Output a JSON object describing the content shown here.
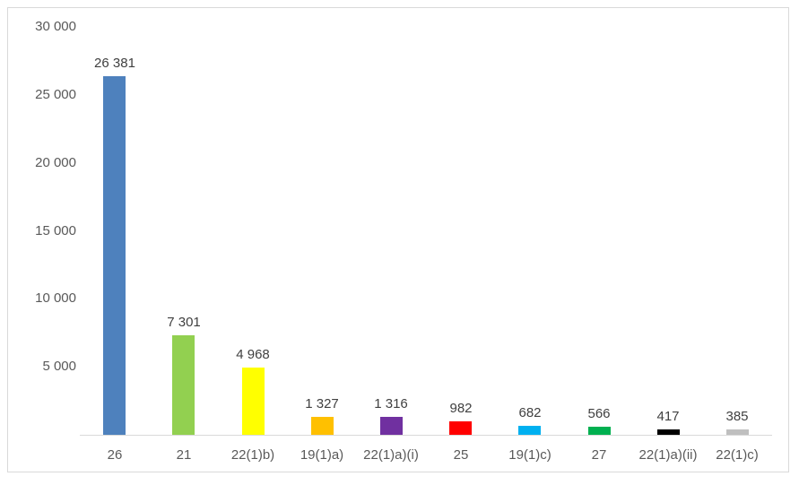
{
  "chart_data": {
    "type": "bar",
    "title": "",
    "xlabel": "",
    "ylabel": "",
    "legend_position": "none",
    "grid": false,
    "ylim": [
      0,
      30000
    ],
    "categories": [
      "26",
      "21",
      "22(1)b)",
      "19(1)a)",
      "22(1)a)(i)",
      "25",
      "19(1)c)",
      "27",
      "22(1)a)(ii)",
      "22(1)c)"
    ],
    "values": [
      26381,
      7301,
      4968,
      1327,
      1316,
      982,
      682,
      566,
      417,
      385
    ],
    "value_labels": [
      "26 381",
      "7 301",
      "4 968",
      "1 327",
      "1 316",
      "982",
      "682",
      "566",
      "417",
      "385"
    ],
    "bar_colors": [
      "#4e81bd",
      "#92d050",
      "#ffff00",
      "#ffc000",
      "#7030a0",
      "#ff0000",
      "#00b0f0",
      "#00b050",
      "#000000",
      "#bfbfbf"
    ],
    "y_ticks": [
      {
        "value": 5000,
        "label": "5 000"
      },
      {
        "value": 10000,
        "label": "10 000"
      },
      {
        "value": 15000,
        "label": "15 000"
      },
      {
        "value": 20000,
        "label": "20 000"
      },
      {
        "value": 25000,
        "label": "25 000"
      },
      {
        "value": 30000,
        "label": "30 000"
      }
    ]
  },
  "colors": {
    "frame_border": "#d9d9d9",
    "axis_line": "#d9d9d9",
    "tick_text": "#595959",
    "category_text": "#595959",
    "data_label_text": "#404040",
    "background": "#ffffff"
  },
  "layout_hints": {
    "legend": "none",
    "data_labels": "above bars",
    "thousands_separator": "space"
  }
}
